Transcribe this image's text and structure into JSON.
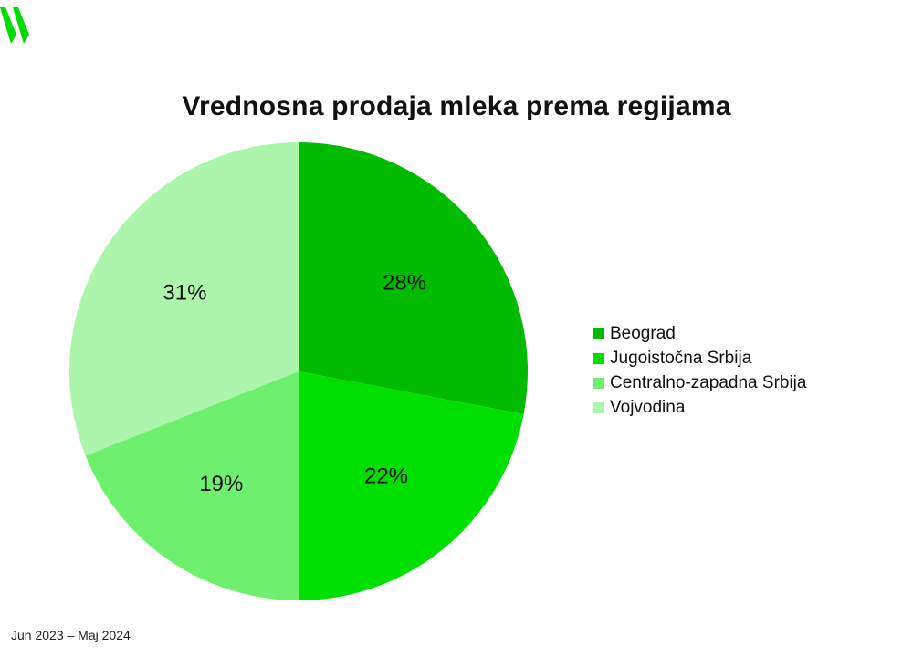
{
  "chart_data": {
    "type": "pie",
    "title": "Vrednosna prodaja mleka prema regijama",
    "categories": [
      "Beograd",
      "Jugoistočna Srbija",
      "Centralno-zapadna Srbija",
      "Vojvodina"
    ],
    "values": [
      28,
      22,
      19,
      31
    ],
    "labels": [
      "28%",
      "22%",
      "19%",
      "31%"
    ],
    "colors": [
      "#00bb00",
      "#00e000",
      "#6ef06e",
      "#adf5ad"
    ],
    "legend_placement": "right"
  },
  "footer": {
    "period": "Jun 2023 – Maj 2024"
  },
  "logo": {
    "icon": "brand-logo-icon",
    "color": "#00dd00"
  }
}
